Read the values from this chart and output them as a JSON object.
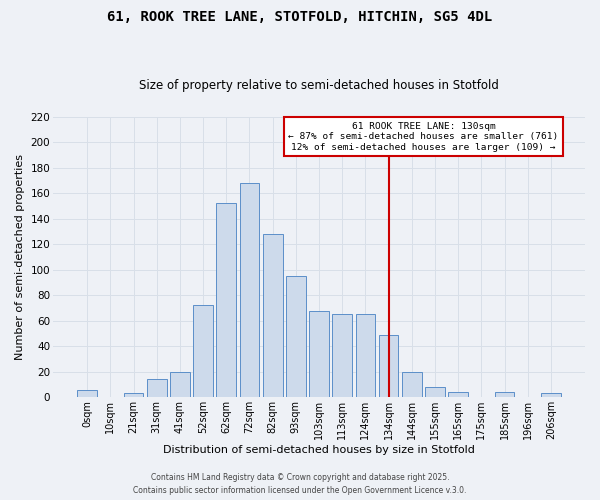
{
  "title": "61, ROOK TREE LANE, STOTFOLD, HITCHIN, SG5 4DL",
  "subtitle": "Size of property relative to semi-detached houses in Stotfold",
  "xlabel": "Distribution of semi-detached houses by size in Stotfold",
  "ylabel": "Number of semi-detached properties",
  "bar_labels": [
    "0sqm",
    "10sqm",
    "21sqm",
    "31sqm",
    "41sqm",
    "52sqm",
    "62sqm",
    "72sqm",
    "82sqm",
    "93sqm",
    "103sqm",
    "113sqm",
    "124sqm",
    "134sqm",
    "144sqm",
    "155sqm",
    "165sqm",
    "175sqm",
    "185sqm",
    "196sqm",
    "206sqm"
  ],
  "bar_values": [
    6,
    0,
    3,
    14,
    20,
    72,
    152,
    168,
    128,
    95,
    68,
    65,
    65,
    49,
    20,
    8,
    4,
    0,
    4,
    0,
    3
  ],
  "bar_color": "#cddaeb",
  "bar_edge_color": "#5b8fc9",
  "grid_color": "#d8dfe8",
  "background_color": "#eef1f6",
  "vline_x_idx": 13,
  "vline_color": "#cc0000",
  "annotation_title": "61 ROOK TREE LANE: 130sqm",
  "annotation_line1": "← 87% of semi-detached houses are smaller (761)",
  "annotation_line2": "12% of semi-detached houses are larger (109) →",
  "annotation_box_color": "#cc0000",
  "ylim": [
    0,
    220
  ],
  "yticks": [
    0,
    20,
    40,
    60,
    80,
    100,
    120,
    140,
    160,
    180,
    200,
    220
  ],
  "footer1": "Contains HM Land Registry data © Crown copyright and database right 2025.",
  "footer2": "Contains public sector information licensed under the Open Government Licence v.3.0."
}
